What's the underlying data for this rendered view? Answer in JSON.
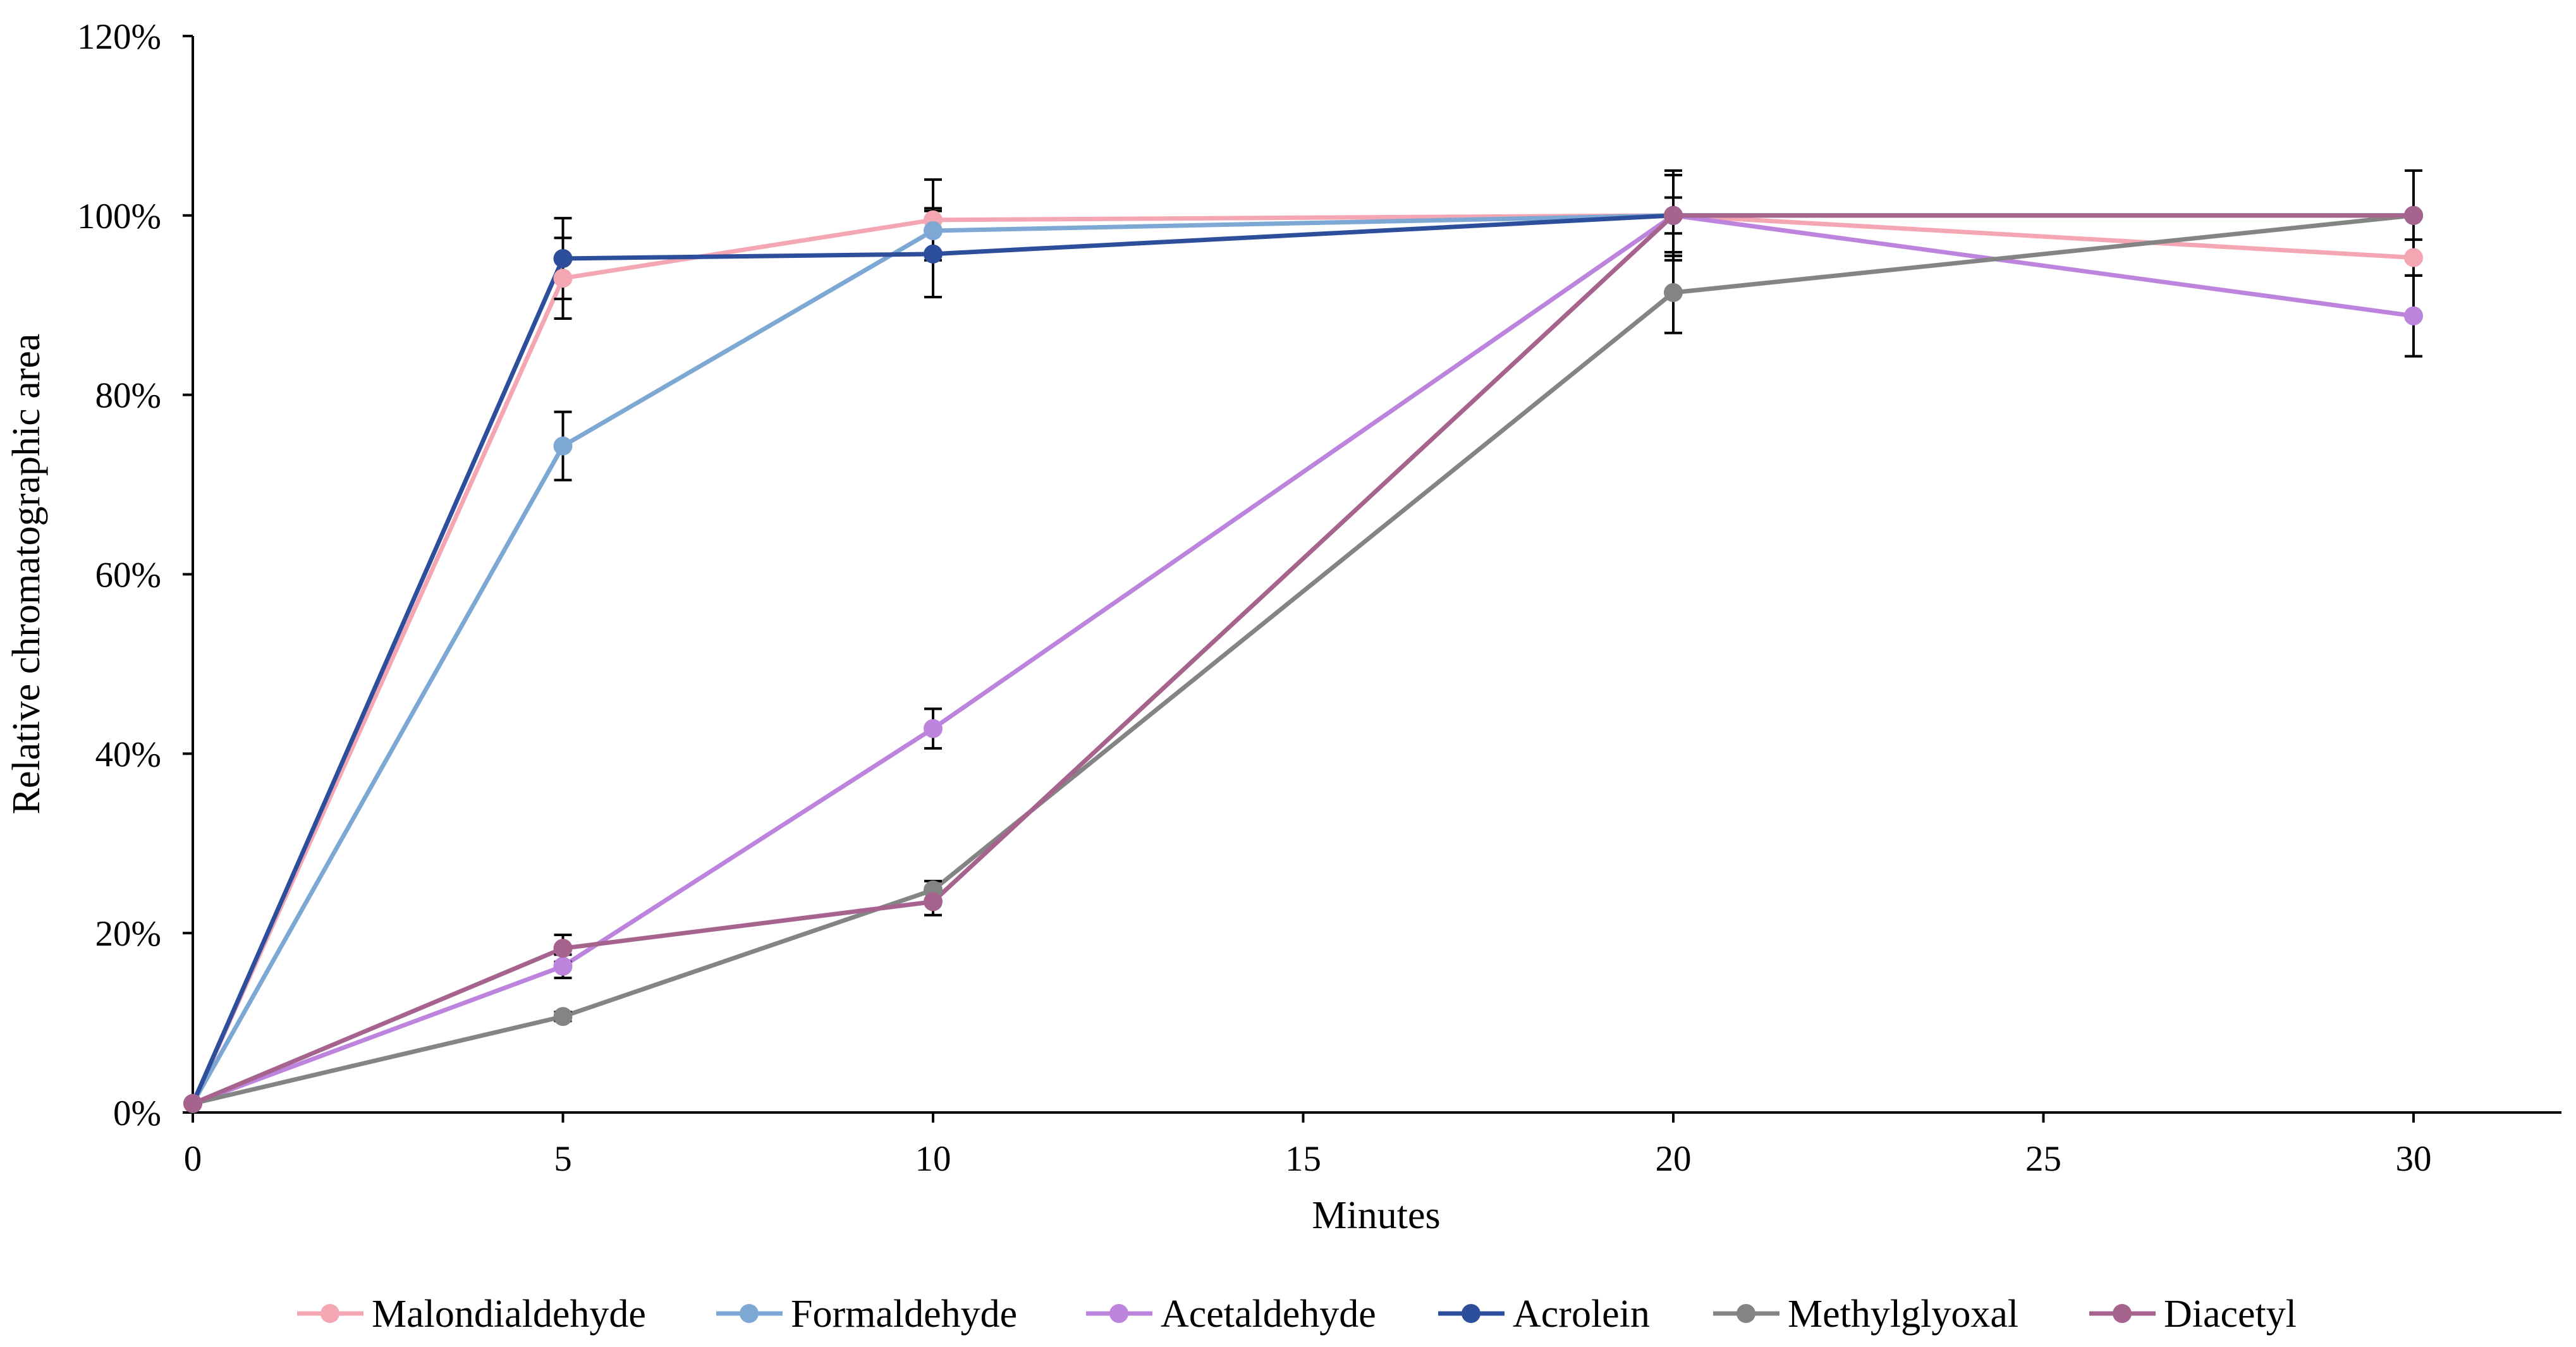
{
  "chart_data": {
    "type": "line",
    "title": "",
    "xlabel": "Minutes",
    "ylabel": "Relative chromatographic area",
    "x": [
      0,
      5,
      10,
      20,
      30
    ],
    "xlim": [
      0,
      32
    ],
    "ylim": [
      0,
      120
    ],
    "xticks": [
      0,
      5,
      10,
      15,
      20,
      25,
      30
    ],
    "yticks": [
      0,
      20,
      40,
      60,
      80,
      100,
      120
    ],
    "ytick_labels": [
      "0%",
      "20%",
      "40%",
      "60%",
      "80%",
      "100%",
      "120%"
    ],
    "grid": false,
    "legend_position": "bottom",
    "series": [
      {
        "name": "Malondialdehyde",
        "color": "#F4A6B3",
        "values": [
          1,
          93,
          99.5,
          100,
          95.3
        ],
        "errors": [
          0,
          4.5,
          4.5,
          5,
          2
        ]
      },
      {
        "name": "Formaldehyde",
        "color": "#7EA8D4",
        "values": [
          1,
          74.3,
          98.3,
          100,
          100
        ],
        "errors": [
          0,
          3.8,
          2.5,
          2,
          0
        ]
      },
      {
        "name": "Acetaldehyde",
        "color": "#BD84DE",
        "values": [
          1,
          16.3,
          42.8,
          100,
          88.8
        ],
        "errors": [
          0,
          1.3,
          2.2,
          0,
          4.5
        ]
      },
      {
        "name": "Acrolein",
        "color": "#2D4E9B",
        "values": [
          1,
          95.2,
          95.7,
          100,
          100
        ],
        "errors": [
          0,
          4.5,
          4.8,
          4.5,
          0
        ]
      },
      {
        "name": "Methylglyoxal",
        "color": "#848484",
        "values": [
          1,
          10.7,
          24.8,
          91.4,
          100
        ],
        "errors": [
          0,
          0.5,
          1,
          4.5,
          5
        ]
      },
      {
        "name": "Diacetyl",
        "color": "#A5638E",
        "values": [
          1,
          18.3,
          23.5,
          100,
          100
        ],
        "errors": [
          0,
          1.5,
          1.5,
          4.5,
          0
        ]
      }
    ]
  }
}
